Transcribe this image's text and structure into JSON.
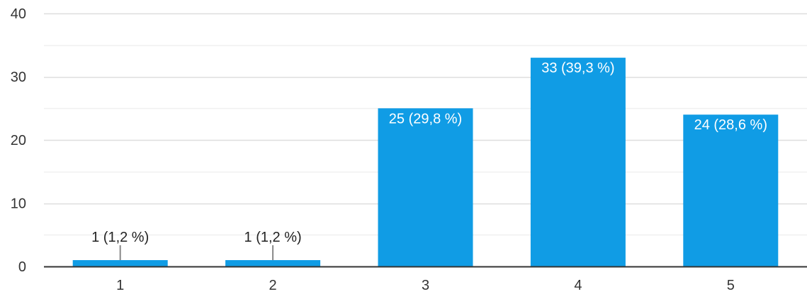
{
  "chart_data": {
    "type": "bar",
    "title": "",
    "xlabel": "",
    "ylabel": "",
    "categories": [
      "1",
      "2",
      "3",
      "4",
      "5"
    ],
    "values": [
      1,
      1,
      25,
      33,
      24
    ],
    "data_labels": [
      "1 (1,2 %)",
      "1 (1,2 %)",
      "25 (29,8 %)",
      "33 (39,3 %)",
      "24 (28,6 %)"
    ],
    "ylim": [
      0,
      40
    ],
    "yticks": [
      "0",
      "10",
      "20",
      "30",
      "40"
    ],
    "grid": true,
    "legend": "none"
  },
  "colors": {
    "bar": "#109ce5",
    "grid_major": "#dedede",
    "grid_minor": "#f0f0f0",
    "axis": "#333333",
    "label_inside": "#ffffff",
    "label_outside": "#222222",
    "leader_line": "#888888"
  }
}
